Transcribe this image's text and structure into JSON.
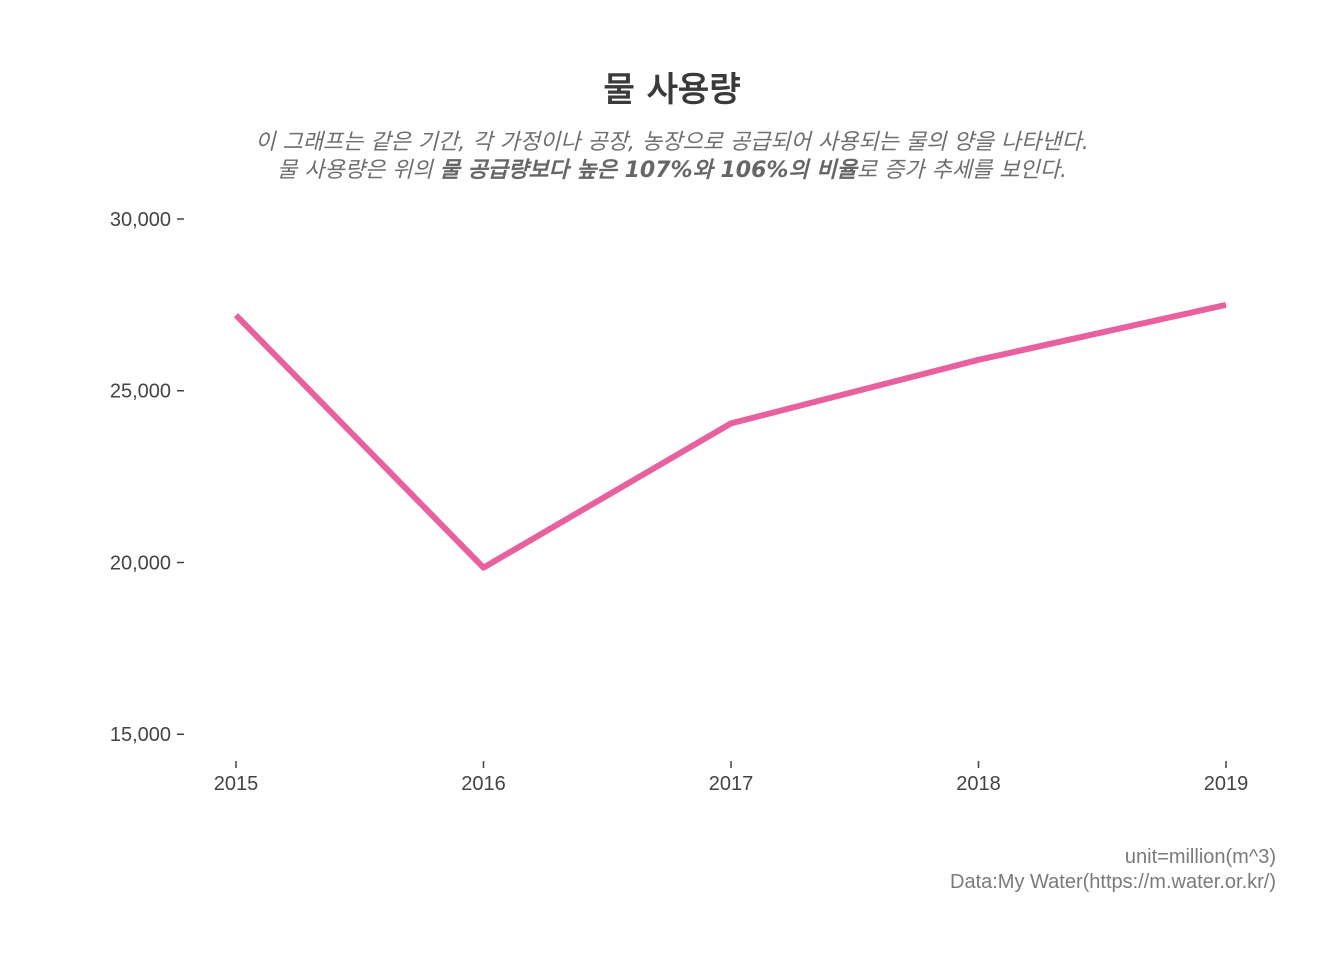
{
  "chart_data": {
    "type": "line",
    "title": "물 사용량",
    "subtitle_line1": "이 그래프는 같은 기간, 각 가정이나 공장, 농장으로 공급되어 사용되는 물의 양을 나타낸다.",
    "subtitle_line2_before": "물 사용량은 위의 ",
    "subtitle_line2_bold": "물 공급량보다 높은 107%와 106%의 비율",
    "subtitle_line2_after": "로 증가 추세를 보인다.",
    "caption_unit": "unit=million(m^3)",
    "caption_source": "Data:My Water(https://m.water.or.kr/)",
    "xlabel": "",
    "ylabel": "",
    "x": [
      "2015",
      "2016",
      "2017",
      "2018",
      "2019"
    ],
    "series": [
      {
        "values": [
          27200,
          19850,
          24050,
          25900,
          27500
        ],
        "color": "#e8609e"
      }
    ],
    "yticks": [
      15000,
      20000,
      25000,
      30000
    ],
    "ytick_labels": [
      "15,000",
      "20,000",
      "25,000",
      "30,000"
    ],
    "ylim": [
      14250,
      30000
    ],
    "grid": false,
    "legend": "none"
  }
}
